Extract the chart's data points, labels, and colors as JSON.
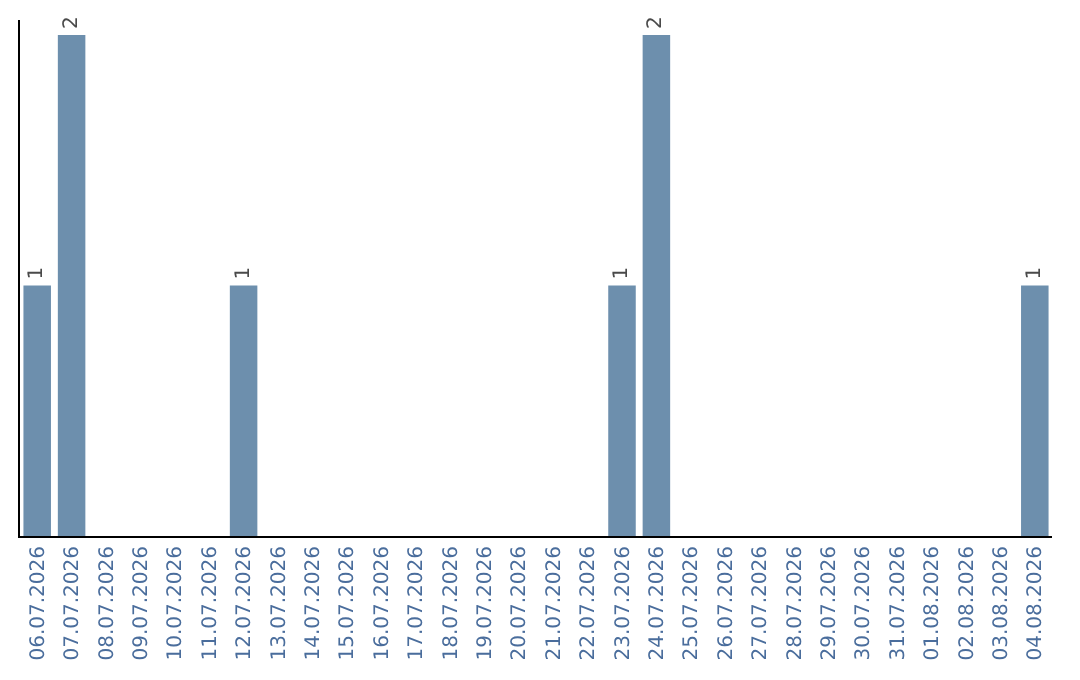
{
  "chart_data": {
    "type": "bar",
    "categories": [
      "06.07.2026",
      "07.07.2026",
      "08.07.2026",
      "09.07.2026",
      "10.07.2026",
      "11.07.2026",
      "12.07.2026",
      "13.07.2026",
      "14.07.2026",
      "15.07.2026",
      "16.07.2026",
      "17.07.2026",
      "18.07.2026",
      "19.07.2026",
      "20.07.2026",
      "21.07.2026",
      "22.07.2026",
      "23.07.2026",
      "24.07.2026",
      "25.07.2026",
      "26.07.2026",
      "27.07.2026",
      "28.07.2026",
      "29.07.2026",
      "30.07.2026",
      "31.07.2026",
      "01.08.2026",
      "02.08.2026",
      "03.08.2026",
      "04.08.2026"
    ],
    "values": [
      1,
      2,
      0,
      0,
      0,
      0,
      1,
      0,
      0,
      0,
      0,
      0,
      0,
      0,
      0,
      0,
      0,
      1,
      2,
      0,
      0,
      0,
      0,
      0,
      0,
      0,
      0,
      0,
      0,
      1
    ],
    "value_labels": [
      "1",
      "2",
      null,
      null,
      null,
      null,
      "1",
      null,
      null,
      null,
      null,
      null,
      null,
      null,
      null,
      null,
      null,
      "1",
      "2",
      null,
      null,
      null,
      null,
      null,
      null,
      null,
      null,
      null,
      null,
      "1"
    ],
    "color": "#6d8fad"
  }
}
